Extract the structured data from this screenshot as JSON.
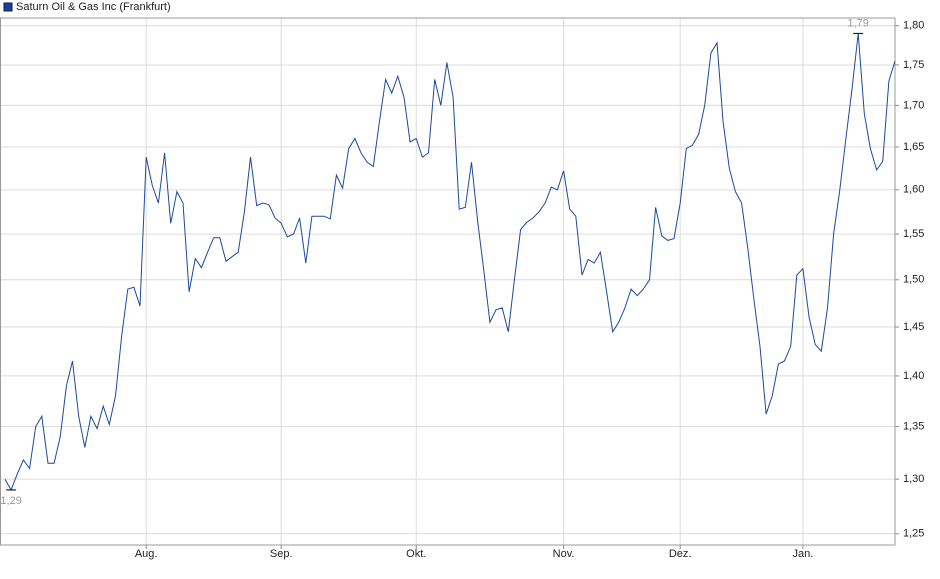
{
  "chart_data": {
    "type": "line",
    "title": "Saturn Oil & Gas Inc (Frankfurt)",
    "categories": [
      null,
      null,
      null,
      null,
      null,
      null,
      null,
      null,
      null,
      null,
      null,
      null,
      null,
      null,
      null,
      null,
      null,
      null,
      null,
      null,
      null,
      null,
      null,
      "Aug.",
      null,
      null,
      null,
      null,
      null,
      null,
      null,
      null,
      null,
      null,
      null,
      null,
      null,
      null,
      null,
      null,
      null,
      null,
      null,
      null,
      null,
      "Sep.",
      null,
      null,
      null,
      null,
      null,
      null,
      null,
      null,
      null,
      null,
      null,
      null,
      null,
      null,
      null,
      null,
      null,
      null,
      null,
      null,
      null,
      "Okt.",
      null,
      null,
      null,
      null,
      null,
      null,
      null,
      null,
      null,
      null,
      null,
      null,
      null,
      null,
      null,
      null,
      null,
      null,
      null,
      null,
      null,
      null,
      null,
      "Nov.",
      null,
      null,
      null,
      null,
      null,
      null,
      null,
      null,
      null,
      null,
      null,
      null,
      null,
      null,
      null,
      null,
      null,
      null,
      "Dez.",
      null,
      null,
      null,
      null,
      null,
      null,
      null,
      null,
      null,
      null,
      null,
      null,
      null,
      null,
      null,
      null,
      null,
      null,
      null,
      "Jan.",
      null,
      null,
      null,
      null,
      null,
      null,
      null,
      null,
      null,
      null,
      null,
      null,
      null,
      null,
      null
    ],
    "series": [
      {
        "name": "Saturn Oil & Gas Inc (Frankfurt)",
        "color": "#1a4a9c",
        "values": [
          1.3,
          1.29,
          1.305,
          1.318,
          1.31,
          1.35,
          1.36,
          1.315,
          1.315,
          1.34,
          1.39,
          1.415,
          1.36,
          1.33,
          1.36,
          1.348,
          1.37,
          1.352,
          1.38,
          1.44,
          1.49,
          1.492,
          1.472,
          1.638,
          1.605,
          1.585,
          1.643,
          1.562,
          1.598,
          1.585,
          1.487,
          1.523,
          1.513,
          1.53,
          1.546,
          1.546,
          1.52,
          1.525,
          1.53,
          1.575,
          1.638,
          1.582,
          1.585,
          1.583,
          1.568,
          1.562,
          1.547,
          1.55,
          1.568,
          1.518,
          1.57,
          1.57,
          1.57,
          1.567,
          1.617,
          1.602,
          1.648,
          1.66,
          1.643,
          1.632,
          1.627,
          1.68,
          1.732,
          1.715,
          1.736,
          1.71,
          1.656,
          1.66,
          1.638,
          1.643,
          1.732,
          1.7,
          1.753,
          1.71,
          1.578,
          1.58,
          1.632,
          1.565,
          1.51,
          1.455,
          1.468,
          1.47,
          1.445,
          1.5,
          1.555,
          1.563,
          1.568,
          1.575,
          1.585,
          1.603,
          1.6,
          1.622,
          1.578,
          1.57,
          1.505,
          1.522,
          1.518,
          1.53,
          1.488,
          1.445,
          1.455,
          1.47,
          1.49,
          1.483,
          1.49,
          1.5,
          1.58,
          1.548,
          1.543,
          1.545,
          1.585,
          1.648,
          1.652,
          1.665,
          1.7,
          1.765,
          1.778,
          1.68,
          1.625,
          1.598,
          1.585,
          1.535,
          1.48,
          1.43,
          1.362,
          1.38,
          1.412,
          1.415,
          1.43,
          1.505,
          1.512,
          1.46,
          1.432,
          1.425,
          1.47,
          1.55,
          1.6,
          1.66,
          1.72,
          1.79,
          1.69,
          1.648,
          1.623,
          1.633,
          1.73,
          1.755
        ]
      }
    ],
    "log_scale": true,
    "ylim": [
      1.24,
      1.81
    ],
    "yticks": [
      {
        "value": 1.25,
        "label": "1,25"
      },
      {
        "value": 1.3,
        "label": "1,30"
      },
      {
        "value": 1.35,
        "label": "1,35"
      },
      {
        "value": 1.4,
        "label": "1,40"
      },
      {
        "value": 1.45,
        "label": "1,45"
      },
      {
        "value": 1.5,
        "label": "1,50"
      },
      {
        "value": 1.55,
        "label": "1,55"
      },
      {
        "value": 1.6,
        "label": "1,60"
      },
      {
        "value": 1.65,
        "label": "1,65"
      },
      {
        "value": 1.7,
        "label": "1,70"
      },
      {
        "value": 1.75,
        "label": "1,75"
      },
      {
        "value": 1.8,
        "label": "1,80"
      }
    ],
    "grid": true,
    "legend": "top-left",
    "annotations": [
      {
        "label": "1,79",
        "value": 1.79
      },
      {
        "label": "1,29",
        "value": 1.29
      }
    ]
  }
}
